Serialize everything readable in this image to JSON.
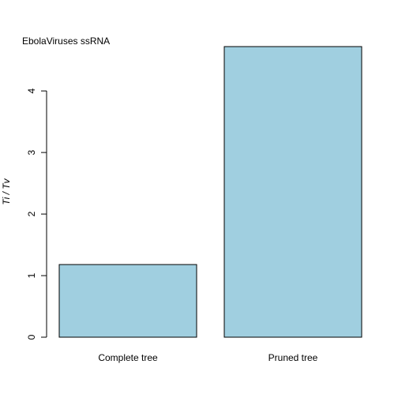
{
  "chart_data": {
    "type": "bar",
    "title": "EbolaViruses ssRNA",
    "categories": [
      "Complete tree",
      "Pruned tree"
    ],
    "values": [
      1.18,
      4.72
    ],
    "xlabel": "",
    "ylabel": "Ti / Tv",
    "ylim": [
      0,
      4.72
    ],
    "yticks": [
      0,
      1,
      2,
      3,
      4
    ],
    "grid": false,
    "legend": "none",
    "bar_color": "#a0cfe0",
    "bar_border_color": "#000000"
  }
}
